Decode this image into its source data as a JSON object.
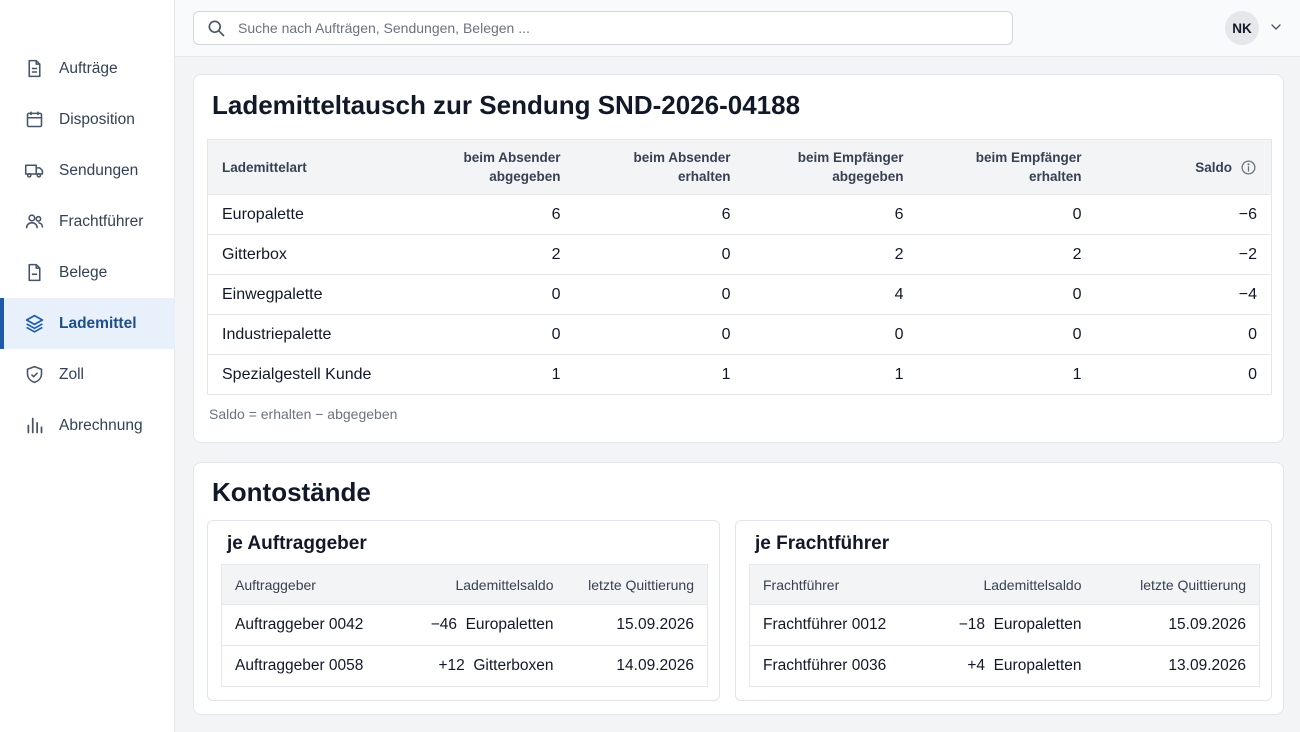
{
  "sidebar": {
    "items": [
      {
        "label": "Aufträge",
        "icon": "document-icon",
        "active": false
      },
      {
        "label": "Disposition",
        "icon": "calendar-icon",
        "active": false
      },
      {
        "label": "Sendungen",
        "icon": "truck-icon",
        "active": false
      },
      {
        "label": "Frachtführer",
        "icon": "users-icon",
        "active": false
      },
      {
        "label": "Belege",
        "icon": "file-icon",
        "active": false
      },
      {
        "label": "Lademittel",
        "icon": "layers-icon",
        "active": true
      },
      {
        "label": "Zoll",
        "icon": "shield-icon",
        "active": false
      },
      {
        "label": "Abrechnung",
        "icon": "bar-chart-icon",
        "active": false
      }
    ]
  },
  "topbar": {
    "search_placeholder": "Suche nach Aufträgen, Sendungen, Belegen ...",
    "user_initials": "NK"
  },
  "exchange": {
    "title": "Lademitteltausch zur Sendung SND-2026-04188",
    "headers": {
      "type": "Lademittelart",
      "sender_given_1": "beim Absender",
      "sender_given_2": "abgegeben",
      "sender_received_1": "beim Absender",
      "sender_received_2": "erhalten",
      "recipient_given_1": "beim Empfänger",
      "recipient_given_2": "abgegeben",
      "recipient_received_1": "beim Empfänger",
      "recipient_received_2": "erhalten",
      "saldo": "Saldo"
    },
    "rows": [
      {
        "type": "Europalette",
        "sender_given": "6",
        "sender_received": "6",
        "recipient_given": "6",
        "recipient_received": "0",
        "saldo": "−6"
      },
      {
        "type": "Gitterbox",
        "sender_given": "2",
        "sender_received": "0",
        "recipient_given": "2",
        "recipient_received": "2",
        "saldo": "−2"
      },
      {
        "type": "Einwegpalette",
        "sender_given": "0",
        "sender_received": "0",
        "recipient_given": "4",
        "recipient_received": "0",
        "saldo": "−4"
      },
      {
        "type": "Industriepalette",
        "sender_given": "0",
        "sender_received": "0",
        "recipient_given": "0",
        "recipient_received": "0",
        "saldo": "0"
      },
      {
        "type": "Spezialgestell Kunde",
        "sender_given": "1",
        "sender_received": "1",
        "recipient_given": "1",
        "recipient_received": "1",
        "saldo": "0"
      }
    ],
    "note": "Saldo = erhalten − abgegeben"
  },
  "balances": {
    "title": "Kontostände",
    "clients": {
      "title": "je Auftraggeber",
      "headers": {
        "name": "Auftraggeber",
        "balance": "Lademittelsaldo",
        "receipt": "letzte Quittierung"
      },
      "rows": [
        {
          "name": "Auftraggeber 0042",
          "balance": "−46  Europaletten",
          "receipt": "15.09.2026"
        },
        {
          "name": "Auftraggeber 0058",
          "balance": "+12  Gitterboxen",
          "receipt": "14.09.2026"
        }
      ]
    },
    "carriers": {
      "title": "je Frachtführer",
      "headers": {
        "name": "Frachtführer",
        "balance": "Lademittelsaldo",
        "receipt": "letzte Quittierung"
      },
      "rows": [
        {
          "name": "Frachtführer 0012",
          "balance": "−18  Europaletten",
          "receipt": "15.09.2026"
        },
        {
          "name": "Frachtführer 0036",
          "balance": "+4  Europaletten",
          "receipt": "13.09.2026"
        }
      ]
    }
  },
  "colors": {
    "accent": "#1e5aa8",
    "active_bg": "#e8f1fb"
  }
}
